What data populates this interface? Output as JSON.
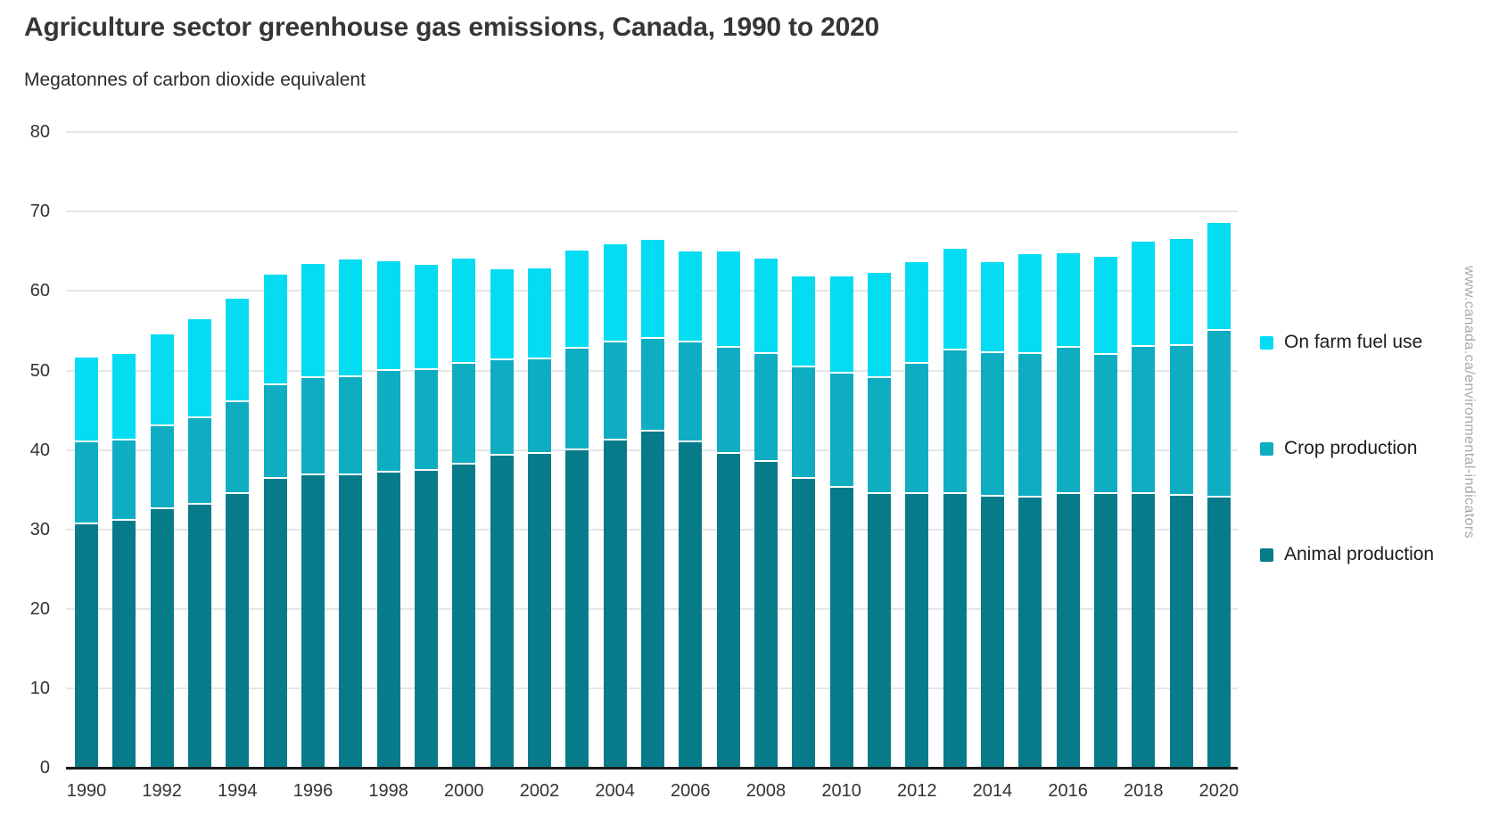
{
  "page": {
    "watermark": "www.canada.ca/environmental-indicators"
  },
  "chart_data": {
    "type": "bar",
    "stacked": true,
    "title": "Agriculture sector greenhouse gas emissions, Canada, 1990 to 2020",
    "ylabel": "Megatonnes of carbon dioxide equivalent",
    "xlabel": "",
    "years": [
      1990,
      1991,
      1992,
      1993,
      1994,
      1995,
      1996,
      1997,
      1998,
      1999,
      2000,
      2001,
      2002,
      2003,
      2004,
      2005,
      2006,
      2007,
      2008,
      2009,
      2010,
      2011,
      2012,
      2013,
      2014,
      2015,
      2016,
      2017,
      2018,
      2019,
      2020
    ],
    "series": [
      {
        "name": "Animal production",
        "color": "#087b8a",
        "values": [
          30.6,
          31.1,
          32.6,
          33.1,
          34.5,
          36.4,
          36.8,
          36.8,
          37.1,
          37.4,
          38.2,
          39.3,
          39.5,
          40.0,
          41.2,
          42.3,
          41.0,
          39.5,
          38.5,
          36.4,
          35.2,
          34.5,
          34.5,
          34.4,
          34.1,
          34.0,
          34.5,
          34.5,
          34.4,
          34.2,
          34.0
        ]
      },
      {
        "name": "Crop production",
        "color": "#0fadc2",
        "values": [
          10.4,
          10.1,
          10.4,
          10.9,
          11.5,
          11.7,
          12.2,
          12.4,
          12.8,
          12.7,
          12.6,
          12.0,
          11.9,
          12.7,
          12.3,
          11.7,
          12.5,
          13.4,
          13.6,
          14.0,
          14.4,
          14.5,
          16.3,
          18.1,
          18.1,
          18.1,
          18.4,
          17.5,
          18.6,
          18.9,
          21.0
        ]
      },
      {
        "name": "On farm fuel use",
        "color": "#04dcf2",
        "values": [
          10.6,
          10.9,
          11.6,
          12.4,
          13.0,
          14.0,
          14.4,
          14.8,
          13.9,
          13.2,
          13.3,
          11.4,
          11.5,
          12.4,
          12.4,
          12.4,
          11.5,
          12.1,
          12.0,
          11.4,
          12.2,
          13.3,
          12.8,
          12.8,
          11.4,
          12.5,
          11.9,
          12.3,
          13.2,
          13.5,
          13.6
        ]
      }
    ],
    "legend_order": [
      "On farm fuel use",
      "Crop production",
      "Animal production"
    ],
    "legend_position": "right",
    "ylim": [
      0,
      80
    ],
    "ytick_step": 10,
    "xtick_step": 2,
    "grid": true,
    "grid_color": "#e6e6e6",
    "axis_color": "#1a1a1a",
    "text_color": "#333333"
  }
}
